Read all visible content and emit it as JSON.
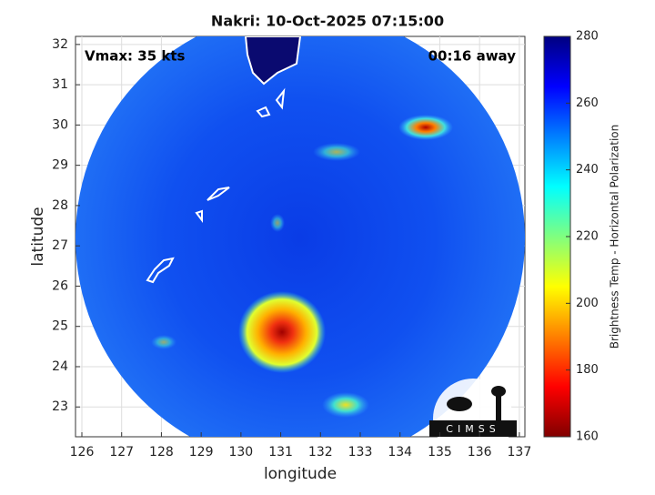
{
  "map": {
    "title": "Nakri: 10-Oct-2025 07:15:00",
    "xlabel": "longitude",
    "ylabel": "latitude",
    "xlim": [
      125.84,
      137.14
    ],
    "ylim": [
      22.26,
      32.2
    ],
    "xticks": [
      126,
      127,
      128,
      129,
      130,
      131,
      132,
      133,
      134,
      135,
      136,
      137
    ],
    "yticks": [
      23,
      24,
      25,
      26,
      27,
      28,
      29,
      30,
      31,
      32
    ],
    "grid": true,
    "annotations": [
      "Vmax: 35 kts",
      "00:16 away"
    ],
    "logo": "CIMSS"
  },
  "colorbar": {
    "label": "Brightness Temp - Horizontal Polarization",
    "lim": [
      160,
      280
    ],
    "ticks": [
      160,
      180,
      200,
      220,
      240,
      260,
      280
    ]
  }
}
